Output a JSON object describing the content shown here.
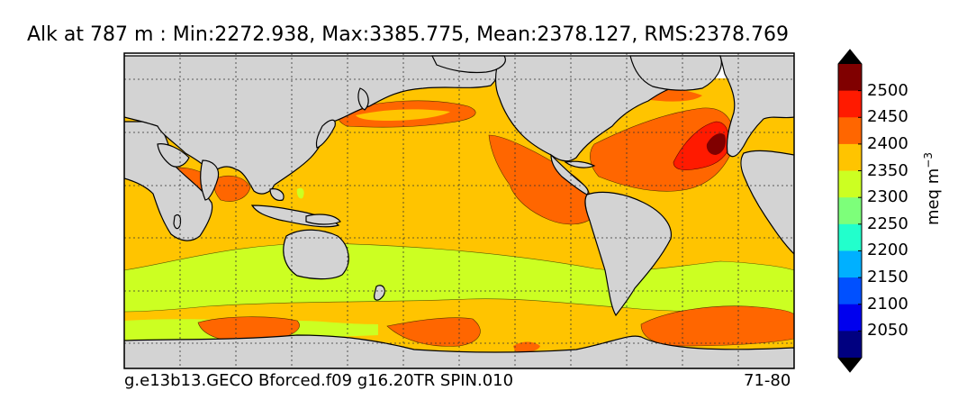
{
  "title": "Alk at 787 m : Min:2272.938, Max:3385.775, Mean:2378.127, RMS:2378.769",
  "footer": {
    "run_label": "g.e13b13.GECO Bforced.f09 g16.20TR SPIN.010",
    "years_label": "71-80"
  },
  "colorbar": {
    "unit_base": "meq m",
    "unit_exp": "−3",
    "tick_labels": [
      "2500",
      "2450",
      "2400",
      "2350",
      "2300",
      "2250",
      "2200",
      "2150",
      "2100",
      "2050"
    ],
    "levels": [
      {
        "value": "2500+",
        "color": "#800000"
      },
      {
        "value": "2450",
        "color": "#ff1a00"
      },
      {
        "value": "2400",
        "color": "#ff6600"
      },
      {
        "value": "2350",
        "color": "#ffc400"
      },
      {
        "value": "2300",
        "color": "#ccff22"
      },
      {
        "value": "2250",
        "color": "#7dff7a"
      },
      {
        "value": "2200",
        "color": "#22ffcc"
      },
      {
        "value": "2150",
        "color": "#00b0ff"
      },
      {
        "value": "2100",
        "color": "#0050ff"
      },
      {
        "value": "2050",
        "color": "#0000ee"
      },
      {
        "value": "<2050",
        "color": "#000080"
      }
    ],
    "extend_top_color": "#000000",
    "extend_bottom_color": "#000000"
  },
  "map": {
    "land_color": "#d3d3d3",
    "missing_color": "#ffffff",
    "grid_style": "dotted"
  }
}
